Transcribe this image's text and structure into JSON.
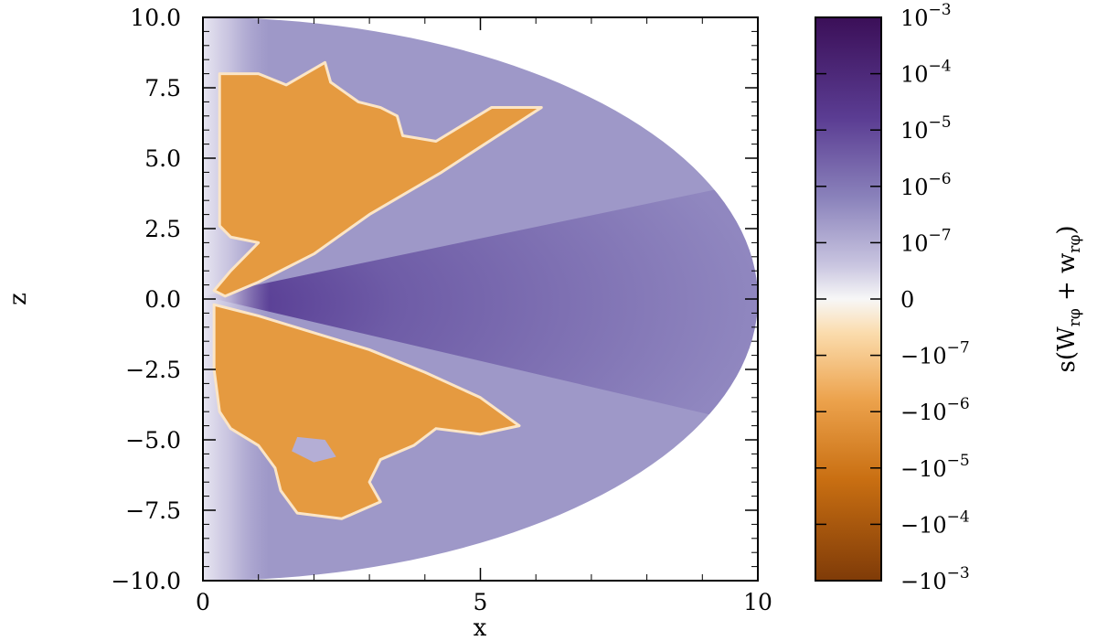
{
  "chart_data": {
    "type": "heatmap",
    "description_free": true,
    "xlabel": "x",
    "ylabel": "z",
    "xlim": [
      0,
      10
    ],
    "ylim": [
      -10,
      10
    ],
    "x_ticks": [
      {
        "value": 0,
        "label": "0"
      },
      {
        "value": 5,
        "label": "5"
      },
      {
        "value": 10,
        "label": "10"
      }
    ],
    "y_ticks": [
      {
        "value": 10,
        "label": "10.0"
      },
      {
        "value": 7.5,
        "label": "7.5"
      },
      {
        "value": 5,
        "label": "5.0"
      },
      {
        "value": 2.5,
        "label": "2.5"
      },
      {
        "value": 0,
        "label": "0.0"
      },
      {
        "value": -2.5,
        "label": "−2.5"
      },
      {
        "value": -5,
        "label": "−5.0"
      },
      {
        "value": -7.5,
        "label": "−7.5"
      },
      {
        "value": -10,
        "label": "−10.0"
      }
    ],
    "domain_radius": 10,
    "colorbar": {
      "label_base": "s(W",
      "label_sub1": "rφ",
      "label_mid": " + w",
      "label_sub2": "rφ",
      "label_end": ")",
      "scale": "symlog",
      "ticks": [
        {
          "level": 5,
          "base": "10",
          "exp": "−3",
          "sign": ""
        },
        {
          "level": 4,
          "base": "10",
          "exp": "−4",
          "sign": ""
        },
        {
          "level": 3,
          "base": "10",
          "exp": "−5",
          "sign": ""
        },
        {
          "level": 2,
          "base": "10",
          "exp": "−6",
          "sign": ""
        },
        {
          "level": 1,
          "base": "10",
          "exp": "−7",
          "sign": ""
        },
        {
          "level": 0,
          "base": "0",
          "exp": "",
          "sign": ""
        },
        {
          "level": -1,
          "base": "10",
          "exp": "−7",
          "sign": "−"
        },
        {
          "level": -2,
          "base": "10",
          "exp": "−6",
          "sign": "−"
        },
        {
          "level": -3,
          "base": "10",
          "exp": "−5",
          "sign": "−"
        },
        {
          "level": -4,
          "base": "10",
          "exp": "−4",
          "sign": "−"
        },
        {
          "level": -5,
          "base": "10",
          "exp": "−3",
          "sign": "−"
        }
      ],
      "colors": {
        "positive_max": "#3b0f58",
        "positive_mid": "#8c83bb",
        "zero": "#f7f7f7",
        "negative_mid": "#e69a3a",
        "negative_max": "#7f3b08"
      }
    },
    "regions": [
      {
        "name": "positive-background",
        "sign": "positive",
        "color": "#9e98c8"
      },
      {
        "name": "positive-midplane-wedge",
        "sign": "positive",
        "color": "#6a56a2"
      },
      {
        "name": "negative-upper-lobe",
        "sign": "negative",
        "color": "#e59a40",
        "outline_xz": [
          [
            0.2,
            0.3
          ],
          [
            0.5,
            1.0
          ],
          [
            1.0,
            2.0
          ],
          [
            0.5,
            2.2
          ],
          [
            0.3,
            2.6
          ],
          [
            0.3,
            8.0
          ],
          [
            1.0,
            8.0
          ],
          [
            1.5,
            7.6
          ],
          [
            2.2,
            8.4
          ],
          [
            2.3,
            7.7
          ],
          [
            2.8,
            7.0
          ],
          [
            3.2,
            6.8
          ],
          [
            3.5,
            6.5
          ],
          [
            3.6,
            5.8
          ],
          [
            4.2,
            5.6
          ],
          [
            5.2,
            6.8
          ],
          [
            6.1,
            6.8
          ],
          [
            5.0,
            5.4
          ],
          [
            4.3,
            4.5
          ],
          [
            3.0,
            3.0
          ],
          [
            2.0,
            1.6
          ],
          [
            1.0,
            0.6
          ],
          [
            0.4,
            0.1
          ]
        ]
      },
      {
        "name": "negative-lower-lobe",
        "sign": "negative",
        "color": "#e59a40",
        "outline_xz": [
          [
            0.2,
            -0.2
          ],
          [
            1.0,
            -0.6
          ],
          [
            2.0,
            -1.2
          ],
          [
            3.0,
            -1.8
          ],
          [
            4.0,
            -2.6
          ],
          [
            5.0,
            -3.5
          ],
          [
            5.7,
            -4.5
          ],
          [
            5.0,
            -4.8
          ],
          [
            4.2,
            -4.6
          ],
          [
            3.8,
            -5.2
          ],
          [
            3.2,
            -5.7
          ],
          [
            3.0,
            -6.5
          ],
          [
            3.2,
            -7.2
          ],
          [
            2.5,
            -7.8
          ],
          [
            1.7,
            -7.6
          ],
          [
            1.4,
            -6.8
          ],
          [
            1.3,
            -6.0
          ],
          [
            1.0,
            -5.2
          ],
          [
            0.5,
            -4.6
          ],
          [
            0.3,
            -4.0
          ],
          [
            0.2,
            -2.5
          ]
        ]
      },
      {
        "name": "negative-lower-hole",
        "sign": "positive",
        "color": "#b4aed5",
        "outline_xz": [
          [
            1.7,
            -4.9
          ],
          [
            2.2,
            -5.0
          ],
          [
            2.4,
            -5.6
          ],
          [
            2.0,
            -5.8
          ],
          [
            1.6,
            -5.4
          ]
        ]
      }
    ]
  }
}
